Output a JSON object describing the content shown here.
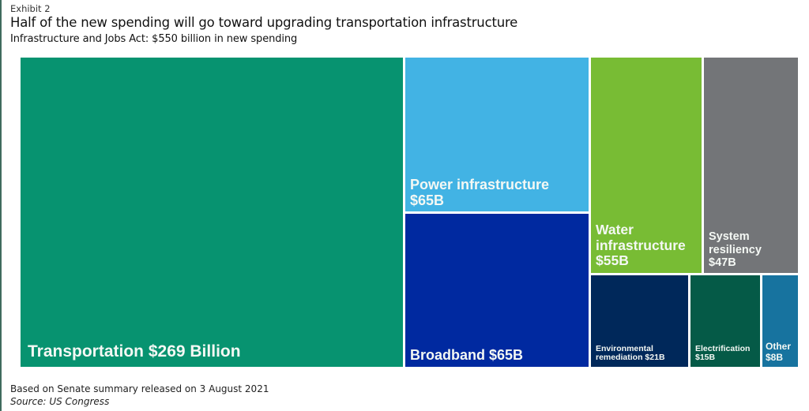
{
  "chart_data": {
    "type": "treemap",
    "exhibit": "Exhibit 2",
    "title": "Half of the new spending will go toward upgrading transportation infrastructure",
    "subtitle": "Infrastructure and Jobs Act: $550 billion in new spending",
    "unit": "billion USD",
    "items": [
      {
        "name": "Transportation",
        "value": 269,
        "label": "Transportation $269 Billion",
        "color": "#079370"
      },
      {
        "name": "Power infrastructure",
        "value": 65,
        "label": "Power infrastructure\n$65B",
        "color": "#42b3e4"
      },
      {
        "name": "Broadband",
        "value": 65,
        "label": "Broadband $65B",
        "color": "#0029a0"
      },
      {
        "name": "Water infrastructure",
        "value": 55,
        "label": "Water\ninfrastructure\n$55B",
        "color": "#78bc34"
      },
      {
        "name": "System resiliency",
        "value": 47,
        "label": "System\nresiliency\n$47B",
        "color": "#737578"
      },
      {
        "name": "Environmental remediation",
        "value": 21,
        "label": "Environmental\nremediation $21B",
        "color": "#00285a"
      },
      {
        "name": "Electrification",
        "value": 15,
        "label": "Electrification\n$15B",
        "color": "#055a47"
      },
      {
        "name": "Other",
        "value": 8,
        "label": "Other\n$8B",
        "color": "#17739f"
      }
    ],
    "note": "Based on Senate summary released on 3 August 2021",
    "source": "Source: US Congress"
  }
}
